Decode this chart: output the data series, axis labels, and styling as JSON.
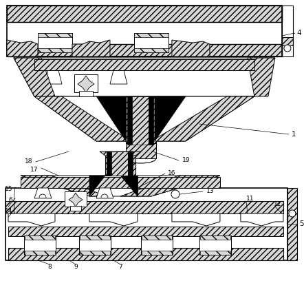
{
  "figure_width": 4.42,
  "figure_height": 4.4,
  "dpi": 100,
  "bg_color": "#ffffff",
  "hatch_light": "#d8d8d8",
  "hatch_dark": "#b0b0b0",
  "line_color": "#000000"
}
